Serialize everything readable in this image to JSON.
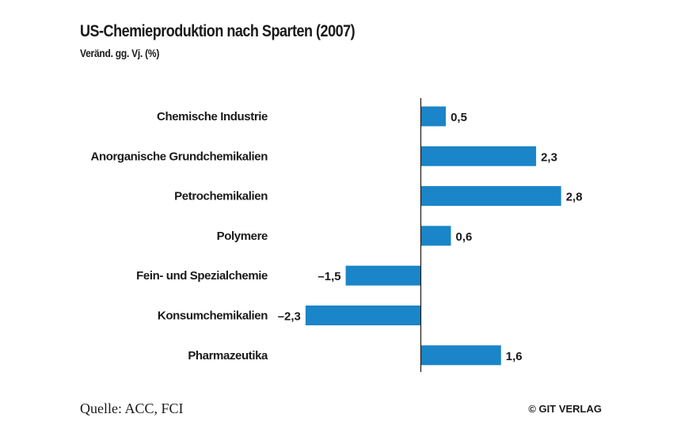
{
  "title": "US-Chemieproduktion nach Sparten (2007)",
  "subtitle": "Veränd. gg. Vj. (%)",
  "source": "Quelle: ACC, FCI",
  "publisher": "© GIT VERLAG",
  "colors": {
    "bar": "#1a85c8",
    "axis": "#1a1a1a",
    "text": "#1a1a1a"
  },
  "chart_data": {
    "type": "bar",
    "orientation": "horizontal",
    "title": "US-Chemieproduktion nach Sparten (2007)",
    "subtitle": "Veränd. gg. Vj. (%)",
    "categories": [
      "Chemische Industrie",
      "Anorganische Grundchemikalien",
      "Petrochemikalien",
      "Polymere",
      "Fein- und Spezialchemie",
      "Konsumchemikalien",
      "Pharmazeutika"
    ],
    "values": [
      0.5,
      2.3,
      2.8,
      0.6,
      -1.5,
      -2.3,
      1.6
    ],
    "value_labels": [
      "0,5",
      "2,3",
      "2,8",
      "0,6",
      "–1,5",
      "–2,3",
      "1,6"
    ],
    "xlabel": "",
    "ylabel": "",
    "grid": false,
    "legend": "none"
  }
}
